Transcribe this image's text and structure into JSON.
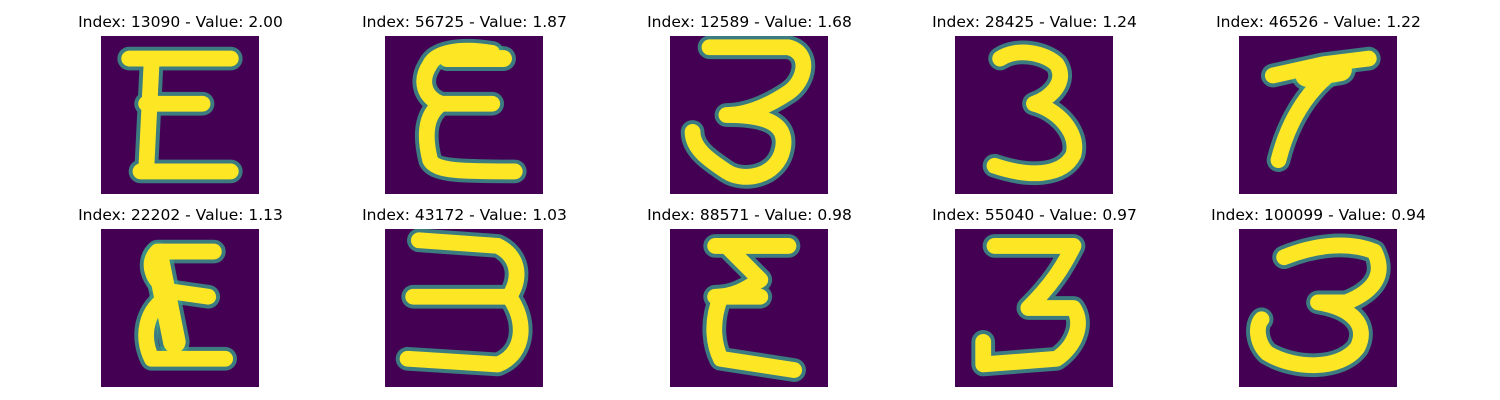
{
  "colors": {
    "background": "#440154",
    "stroke": "#fde725",
    "edge": "#3b9a8a"
  },
  "panels": [
    {
      "title": "Index: 13090 - Value: 2.00",
      "glyph": "E"
    },
    {
      "title": "Index: 56725 - Value: 1.87",
      "glyph": "E"
    },
    {
      "title": "Index: 12589 - Value: 1.68",
      "glyph": "3"
    },
    {
      "title": "Index: 28425 - Value: 1.24",
      "glyph": "3"
    },
    {
      "title": "Index: 46526 - Value: 1.22",
      "glyph": "7"
    },
    {
      "title": "Index: 22202 - Value: 1.13",
      "glyph": "E"
    },
    {
      "title": "Index: 43172 - Value: 1.03",
      "glyph": "3"
    },
    {
      "title": "Index: 88571 - Value: 0.98",
      "glyph": "E"
    },
    {
      "title": "Index: 55040 - Value: 0.97",
      "glyph": "3"
    },
    {
      "title": "Index: 100099 - Value: 0.94",
      "glyph": "3"
    }
  ]
}
